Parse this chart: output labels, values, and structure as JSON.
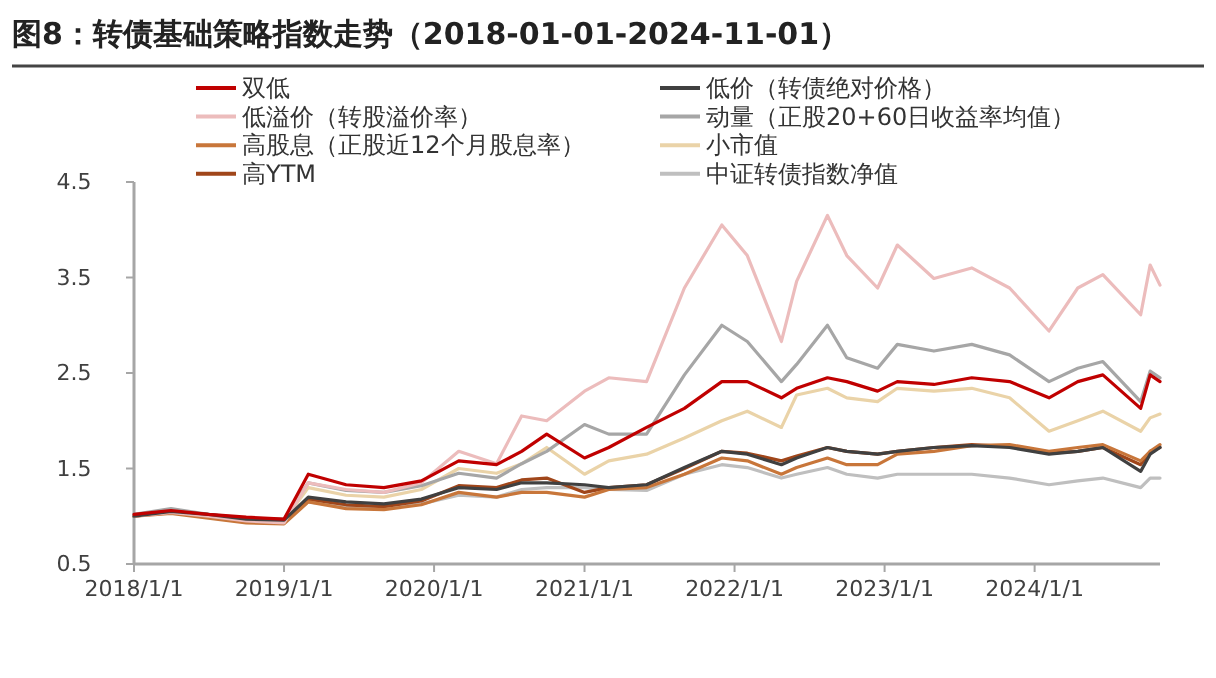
{
  "chart_data": {
    "type": "line",
    "title": "图8：转债基础策略指数走势（2018-01-01-2024-11-01）",
    "x": [
      "2018-01-01",
      "2018-04-01",
      "2018-07-01",
      "2018-10-01",
      "2019-01-01",
      "2019-03-01",
      "2019-06-01",
      "2019-09-01",
      "2019-12-01",
      "2020-03-01",
      "2020-06-01",
      "2020-08-01",
      "2020-10-01",
      "2021-01-01",
      "2021-03-01",
      "2021-06-01",
      "2021-09-01",
      "2021-12-01",
      "2022-02-01",
      "2022-04-25",
      "2022-06-01",
      "2022-08-15",
      "2022-10-01",
      "2022-12-15",
      "2023-02-01",
      "2023-05-01",
      "2023-08-01",
      "2023-11-01",
      "2024-02-05",
      "2024-04-15",
      "2024-06-15",
      "2024-09-15",
      "2024-10-08",
      "2024-11-01"
    ],
    "series": [
      {
        "name": "双低",
        "color": "#c00000",
        "values": [
          1.02,
          1.06,
          1.02,
          0.99,
          0.97,
          1.44,
          1.33,
          1.3,
          1.37,
          1.58,
          1.54,
          1.68,
          1.86,
          1.61,
          1.72,
          1.93,
          2.13,
          2.41,
          2.41,
          2.24,
          2.34,
          2.45,
          2.41,
          2.31,
          2.41,
          2.38,
          2.45,
          2.41,
          2.24,
          2.41,
          2.48,
          2.13,
          2.48,
          2.41
        ]
      },
      {
        "name": "低价（转债绝对价格）",
        "color": "#404040",
        "values": [
          1.0,
          1.05,
          1.02,
          0.97,
          0.96,
          1.2,
          1.15,
          1.13,
          1.18,
          1.3,
          1.28,
          1.35,
          1.35,
          1.33,
          1.3,
          1.33,
          1.51,
          1.68,
          1.65,
          1.54,
          1.61,
          1.72,
          1.68,
          1.65,
          1.68,
          1.72,
          1.74,
          1.72,
          1.65,
          1.68,
          1.72,
          1.47,
          1.65,
          1.72
        ]
      },
      {
        "name": "低溢价（转股溢价率）",
        "color": "#ecbcbc",
        "values": [
          1.0,
          1.04,
          1.0,
          0.95,
          0.93,
          1.35,
          1.28,
          1.25,
          1.35,
          1.68,
          1.55,
          2.05,
          2.0,
          2.31,
          2.45,
          2.41,
          3.39,
          4.05,
          3.73,
          2.83,
          3.46,
          4.15,
          3.73,
          3.39,
          3.84,
          3.49,
          3.6,
          3.39,
          2.94,
          3.39,
          3.53,
          3.11,
          3.63,
          3.42
        ]
      },
      {
        "name": "动量（正股20+60日收益率均值）",
        "color": "#a6a6a6",
        "values": [
          1.02,
          1.08,
          1.02,
          0.98,
          0.97,
          1.35,
          1.27,
          1.25,
          1.32,
          1.45,
          1.4,
          1.55,
          1.68,
          1.96,
          1.86,
          1.86,
          2.48,
          3.0,
          2.83,
          2.41,
          2.59,
          3.0,
          2.66,
          2.55,
          2.8,
          2.73,
          2.8,
          2.69,
          2.41,
          2.55,
          2.62,
          2.2,
          2.52,
          2.45
        ]
      },
      {
        "name": "高股息（正股近12个月股息率）",
        "color": "#c8763a",
        "values": [
          1.0,
          1.03,
          0.98,
          0.93,
          0.92,
          1.15,
          1.08,
          1.07,
          1.12,
          1.25,
          1.2,
          1.25,
          1.25,
          1.2,
          1.28,
          1.3,
          1.44,
          1.61,
          1.58,
          1.44,
          1.51,
          1.61,
          1.54,
          1.54,
          1.65,
          1.68,
          1.74,
          1.75,
          1.68,
          1.72,
          1.75,
          1.58,
          1.68,
          1.75
        ]
      },
      {
        "name": "小市值",
        "color": "#ead3a8",
        "values": [
          1.0,
          1.06,
          1.0,
          0.96,
          0.95,
          1.3,
          1.22,
          1.2,
          1.28,
          1.5,
          1.45,
          1.55,
          1.72,
          1.44,
          1.58,
          1.65,
          1.82,
          2.0,
          2.1,
          1.93,
          2.27,
          2.34,
          2.24,
          2.2,
          2.34,
          2.31,
          2.34,
          2.24,
          1.89,
          2.0,
          2.1,
          1.89,
          2.03,
          2.07
        ]
      },
      {
        "name": "高YTM",
        "color": "#a0461a",
        "values": [
          1.0,
          1.04,
          0.99,
          0.95,
          0.94,
          1.18,
          1.12,
          1.1,
          1.16,
          1.32,
          1.3,
          1.38,
          1.4,
          1.25,
          1.3,
          1.33,
          1.5,
          1.68,
          1.66,
          1.58,
          1.63,
          1.72,
          1.68,
          1.65,
          1.68,
          1.72,
          1.75,
          1.73,
          1.66,
          1.68,
          1.72,
          1.54,
          1.68,
          1.72
        ]
      },
      {
        "name": "中证转债指数净值",
        "color": "#bfbfbf",
        "values": [
          1.0,
          1.05,
          1.0,
          0.96,
          0.95,
          1.15,
          1.1,
          1.08,
          1.13,
          1.22,
          1.2,
          1.28,
          1.3,
          1.3,
          1.28,
          1.27,
          1.44,
          1.54,
          1.51,
          1.4,
          1.44,
          1.51,
          1.44,
          1.4,
          1.44,
          1.44,
          1.44,
          1.4,
          1.33,
          1.37,
          1.4,
          1.3,
          1.4,
          1.4
        ]
      }
    ],
    "xlim": [
      "2018-01-01",
      "2024-11-01"
    ],
    "xticks": [
      {
        "value": "2018-01-01",
        "label": "2018/1/1"
      },
      {
        "value": "2019-01-01",
        "label": "2019/1/1"
      },
      {
        "value": "2020-01-01",
        "label": "2020/1/1"
      },
      {
        "value": "2021-01-01",
        "label": "2021/1/1"
      },
      {
        "value": "2022-01-01",
        "label": "2022/1/1"
      },
      {
        "value": "2023-01-01",
        "label": "2023/1/1"
      },
      {
        "value": "2024-01-01",
        "label": "2024/1/1"
      }
    ],
    "ylim": [
      0.5,
      4.5
    ],
    "yticks": [
      0.5,
      1.5,
      2.5,
      3.5,
      4.5
    ],
    "grid": false,
    "legend": "top",
    "marker": "none",
    "line_style": "solid"
  }
}
